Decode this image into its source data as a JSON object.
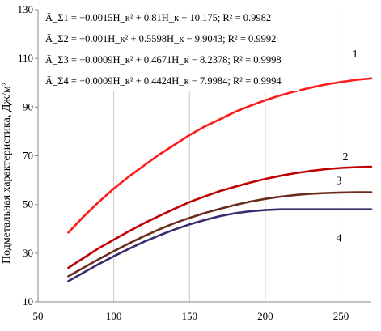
{
  "chart_data": {
    "type": "line",
    "ylabel": "Подметальная характеристика, Дж/м²",
    "xlabel": "",
    "xlim": [
      50,
      270
    ],
    "ylim": [
      10,
      130
    ],
    "xticks": [
      "50",
      "100",
      "150",
      "200",
      "250"
    ],
    "yticks": [
      "10",
      "30",
      "50",
      "70",
      "90",
      "110",
      "130"
    ],
    "grid": "vertical",
    "equations": [
      "Ā_Σ1 = −0.0015H_к² + 0.81H_к − 10.175; R² = 0.9982",
      "Ā_Σ2 = −0.001H_к² + 0.5598H_к − 9.9043; R² = 0.9992",
      "Ā_Σ3 = −0.0009H_к² + 0.4671H_к − 8.2378; R² = 0.9998",
      "Ā_Σ4 = −0.0009H_к² + 0.4424H_к − 7.9984; R² = 0.9994"
    ],
    "series": [
      {
        "name": "1",
        "color": "#ff1a1a",
        "x": [
          70,
          80,
          90,
          100,
          110,
          120,
          130,
          140,
          150,
          160,
          170,
          180,
          190,
          200,
          210,
          220,
          230,
          240,
          250,
          260,
          270
        ],
        "y": [
          38.5,
          45,
          51,
          56.5,
          61.5,
          66,
          70.5,
          74.5,
          78.5,
          82,
          85,
          88,
          90.5,
          92.8,
          94.8,
          96.5,
          98,
          99.3,
          100.3,
          101.2,
          101.8
        ]
      },
      {
        "name": "2",
        "color": "#c00000",
        "x": [
          70,
          80,
          90,
          100,
          110,
          120,
          130,
          140,
          150,
          160,
          170,
          180,
          190,
          200,
          210,
          220,
          230,
          240,
          250,
          260,
          270
        ],
        "y": [
          24,
          28,
          32,
          35.5,
          39,
          42.3,
          45.3,
          48.2,
          51,
          53.3,
          55.5,
          57.3,
          59,
          60.5,
          61.8,
          62.9,
          63.8,
          64.5,
          65,
          65.3,
          65.5
        ]
      },
      {
        "name": "3",
        "color": "#6b2c1e",
        "x": [
          70,
          80,
          90,
          100,
          110,
          120,
          130,
          140,
          150,
          160,
          170,
          180,
          190,
          200,
          210,
          220,
          230,
          240,
          250,
          260,
          270
        ],
        "y": [
          20.5,
          24,
          27.5,
          30.8,
          34,
          37,
          39.8,
          42.3,
          44.5,
          46.5,
          48.2,
          49.8,
          51.2,
          52.3,
          53.2,
          53.9,
          54.4,
          54.7,
          54.9,
          55,
          55
        ]
      },
      {
        "name": "4",
        "color": "#3b2a6e",
        "x": [
          70,
          80,
          90,
          100,
          110,
          120,
          130,
          140,
          150,
          160,
          170,
          180,
          190,
          200,
          210,
          220,
          230,
          240,
          250,
          260,
          270
        ],
        "y": [
          18.5,
          22,
          25.5,
          28.7,
          31.8,
          34.7,
          37.3,
          39.7,
          41.8,
          43.6,
          45.2,
          46.4,
          47.2,
          47.7,
          48,
          48,
          48,
          48,
          48,
          48,
          48
        ]
      }
    ]
  }
}
